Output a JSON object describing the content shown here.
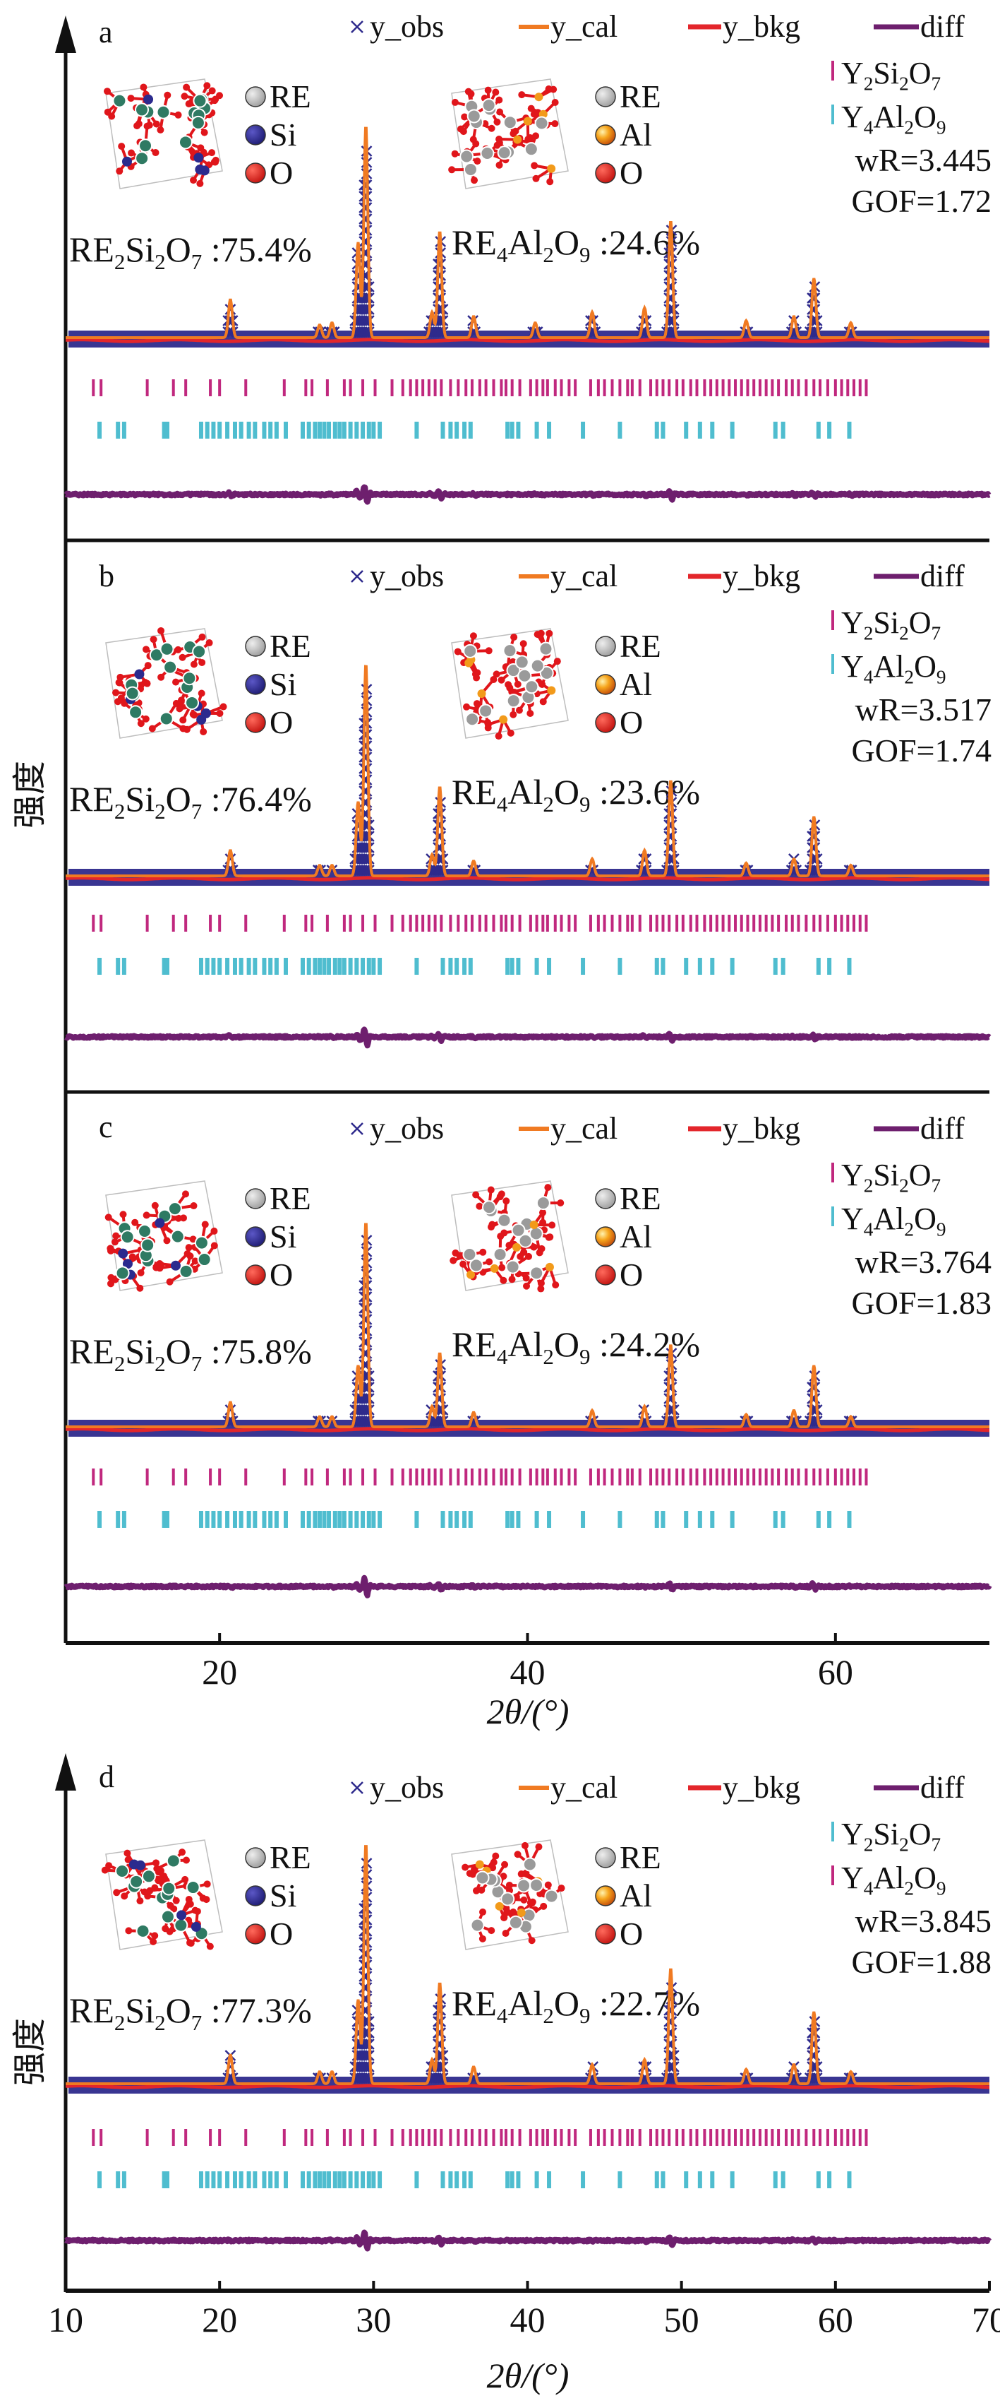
{
  "figure": {
    "ylabel": "强度",
    "xlabel": "2θ/(°)",
    "colors": {
      "y_obs": "#2e2a8c",
      "y_cal": "#f07a22",
      "y_bkg": "#e3262b",
      "diff": "#6e1f6e",
      "Y2Si2O7_ticks": "#c0287e",
      "Y4Al2O9_ticks": "#4fbdcf",
      "axis": "#111111",
      "RE_ball_si": "#2f7a63",
      "RE_ball_al": "#9a9a9a",
      "Si_ball": "#2b2a8e",
      "Al_ball": "#f29a1a",
      "O_ball": "#e0161b"
    }
  },
  "legend": {
    "y_obs": "y_obs",
    "y_cal": "y_cal",
    "y_bkg": "y_bkg",
    "diff": "diff",
    "phase1": {
      "base": "Y",
      "sub1": "2",
      "mid": "Si",
      "sub2": "2",
      "end": "O",
      "sub3": "7"
    },
    "phase2": {
      "base": "Y",
      "sub1": "4",
      "mid": "Al",
      "sub2": "2",
      "end": "O",
      "sub3": "9"
    },
    "struct1_atoms": [
      "RE",
      "Si",
      "O"
    ],
    "struct2_atoms": [
      "RE",
      "Al",
      "O"
    ]
  },
  "chart_data": [
    {
      "type": "line",
      "panel": "a",
      "title": "a",
      "xlabel": "2θ/(°)",
      "ylabel": "强度",
      "xlim": [
        10,
        70
      ],
      "xticks": [],
      "series": [
        "y_obs",
        "y_cal",
        "y_bkg",
        "diff"
      ],
      "phase_ticks_order": [
        "Y2Si2O7",
        "Y4Al2O9"
      ],
      "phase1_color": "magenta",
      "phase2_color": "cyan",
      "RE2Si2O7_pct": "75.4%",
      "RE4Al2O9_pct": "24.6%",
      "wR": "wR=3.445",
      "GOF": "GOF=1.72",
      "peaks": [
        [
          20.7,
          0.18
        ],
        [
          26.5,
          0.06
        ],
        [
          27.3,
          0.07
        ],
        [
          29.0,
          0.45
        ],
        [
          29.5,
          1.0
        ],
        [
          33.8,
          0.12
        ],
        [
          34.3,
          0.5
        ],
        [
          36.5,
          0.1
        ],
        [
          40.5,
          0.07
        ],
        [
          44.2,
          0.12
        ],
        [
          47.6,
          0.14
        ],
        [
          49.3,
          0.55
        ],
        [
          54.2,
          0.08
        ],
        [
          57.3,
          0.1
        ],
        [
          58.6,
          0.28
        ],
        [
          61.0,
          0.07
        ]
      ]
    },
    {
      "type": "line",
      "panel": "b",
      "title": "b",
      "xlabel": "2θ/(°)",
      "ylabel": "强度",
      "xlim": [
        10,
        70
      ],
      "xticks": [],
      "series": [
        "y_obs",
        "y_cal",
        "y_bkg",
        "diff"
      ],
      "phase1_color": "magenta",
      "phase2_color": "cyan",
      "RE2Si2O7_pct": "76.4%",
      "RE4Al2O9_pct": "23.6%",
      "wR": "wR=3.517",
      "GOF": "GOF=1.74",
      "peaks": [
        [
          20.7,
          0.12
        ],
        [
          26.5,
          0.05
        ],
        [
          27.3,
          0.05
        ],
        [
          29.0,
          0.35
        ],
        [
          29.5,
          1.0
        ],
        [
          33.8,
          0.1
        ],
        [
          34.3,
          0.42
        ],
        [
          36.5,
          0.07
        ],
        [
          44.2,
          0.08
        ],
        [
          47.6,
          0.12
        ],
        [
          49.3,
          0.45
        ],
        [
          54.2,
          0.06
        ],
        [
          57.3,
          0.08
        ],
        [
          58.6,
          0.28
        ],
        [
          61.0,
          0.05
        ]
      ]
    },
    {
      "type": "line",
      "panel": "c",
      "title": "c",
      "xlabel": "2θ/(°)",
      "ylabel": "强度",
      "xlim": [
        10,
        70
      ],
      "xticks": [
        20,
        40,
        60
      ],
      "series": [
        "y_obs",
        "y_cal",
        "y_bkg",
        "diff"
      ],
      "phase1_color": "magenta",
      "phase2_color": "cyan",
      "RE2Si2O7_pct": "75.8%",
      "RE4Al2O9_pct": "24.2%",
      "wR": "wR=3.764",
      "GOF": "GOF=1.83",
      "peaks": [
        [
          20.7,
          0.12
        ],
        [
          26.5,
          0.05
        ],
        [
          27.3,
          0.05
        ],
        [
          29.0,
          0.3
        ],
        [
          29.5,
          1.0
        ],
        [
          33.8,
          0.1
        ],
        [
          34.3,
          0.36
        ],
        [
          36.5,
          0.07
        ],
        [
          44.2,
          0.08
        ],
        [
          47.6,
          0.1
        ],
        [
          49.3,
          0.4
        ],
        [
          54.2,
          0.06
        ],
        [
          57.3,
          0.08
        ],
        [
          58.6,
          0.3
        ],
        [
          61.0,
          0.05
        ]
      ]
    },
    {
      "type": "line",
      "panel": "d",
      "title": "d",
      "xlabel": "2θ/(°)",
      "ylabel": "强度",
      "xlim": [
        10,
        70
      ],
      "xticks": [
        10,
        20,
        30,
        40,
        50,
        60,
        70
      ],
      "series": [
        "y_obs",
        "y_cal",
        "y_bkg",
        "diff"
      ],
      "phase1_color": "cyan",
      "phase2_color": "magenta",
      "RE2Si2O7_pct": "77.3%",
      "RE4Al2O9_pct": "22.7%",
      "wR": "wR=3.845",
      "GOF": "GOF=1.88",
      "peaks": [
        [
          20.7,
          0.12
        ],
        [
          26.5,
          0.05
        ],
        [
          27.3,
          0.05
        ],
        [
          29.0,
          0.35
        ],
        [
          29.5,
          1.0
        ],
        [
          33.8,
          0.1
        ],
        [
          34.3,
          0.42
        ],
        [
          36.5,
          0.07
        ],
        [
          44.2,
          0.08
        ],
        [
          47.6,
          0.1
        ],
        [
          49.3,
          0.48
        ],
        [
          54.2,
          0.06
        ],
        [
          57.3,
          0.08
        ],
        [
          58.6,
          0.3
        ],
        [
          61.0,
          0.05
        ]
      ]
    }
  ],
  "phase_ticks": {
    "Y2Si2O7": [
      11.8,
      12.3,
      15.3,
      17.0,
      17.8,
      19.4,
      20.0,
      21.7,
      24.2,
      25.6,
      26.0,
      27.0,
      28.1,
      28.5,
      29.3,
      30.1,
      31.2,
      31.9,
      32.4,
      32.8,
      33.2,
      33.6,
      34.0,
      34.4,
      35.0,
      35.5,
      36.0,
      36.4,
      36.9,
      37.3,
      37.8,
      38.3,
      38.6,
      39.0,
      39.5,
      40.2,
      40.6,
      41.0,
      41.3,
      41.8,
      42.2,
      42.7,
      43.1,
      44.1,
      44.6,
      45.0,
      45.5,
      46.0,
      46.5,
      46.8,
      47.3,
      48.0,
      48.4,
      48.8,
      49.2,
      49.7,
      50.1,
      50.6,
      51.0,
      51.5,
      51.9,
      52.3,
      52.7,
      53.1,
      53.5,
      53.9,
      54.3,
      54.7,
      55.1,
      55.5,
      55.9,
      56.3,
      56.8,
      57.2,
      57.6,
      58.1,
      58.6,
      59.0,
      59.5,
      60.0,
      60.4,
      60.8,
      61.2,
      61.6,
      62.0
    ],
    "Y4Al2O9": [
      12.2,
      13.4,
      13.8,
      16.4,
      16.6,
      18.8,
      19.2,
      19.6,
      20.0,
      20.5,
      21.0,
      21.4,
      21.9,
      22.3,
      22.9,
      23.3,
      23.7,
      24.3,
      25.4,
      25.8,
      26.2,
      26.5,
      26.8,
      27.1,
      27.5,
      27.8,
      28.1,
      28.5,
      28.9,
      29.3,
      29.7,
      30.0,
      30.4,
      32.8,
      34.5,
      35.0,
      35.4,
      35.9,
      36.3,
      38.7,
      39.0,
      39.4,
      40.6,
      41.4,
      43.6,
      46.0,
      48.4,
      48.8,
      50.3,
      51.2,
      52.0,
      53.3,
      56.1,
      56.6,
      58.9,
      59.6,
      60.9
    ]
  }
}
